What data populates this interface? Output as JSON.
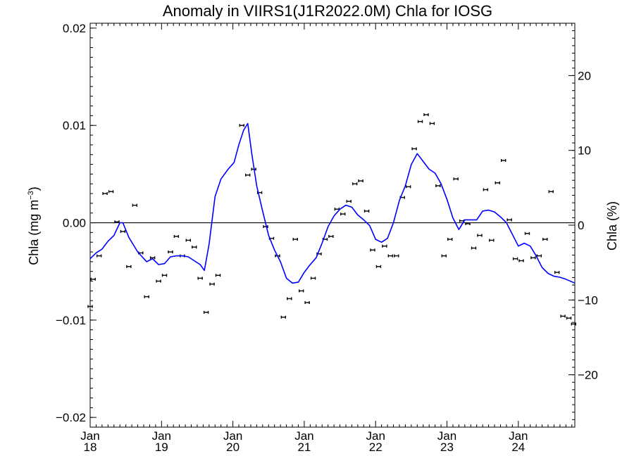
{
  "chart_data": {
    "type": "line",
    "title": "Anomaly in VIIRS1(J1R2022.0M) Chla for IOSG",
    "ylabel_left": "Chla (mg m",
    "ylabel_left_sup": "−3",
    "ylabel_left_close": ")",
    "ylabel_right": "Chla (%)",
    "ylim_left": [
      -0.021,
      0.0205
    ],
    "ylim_right": [
      -27,
      27
    ],
    "grid": false,
    "left_ticks": [
      {
        "value": 0.02,
        "label": "0.02"
      },
      {
        "value": 0.01,
        "label": "0.01"
      },
      {
        "value": 0.0,
        "label": "0.00"
      },
      {
        "value": -0.01,
        "label": "−0.01"
      },
      {
        "value": -0.02,
        "label": "−0.02"
      }
    ],
    "right_ticks": [
      {
        "value": 20,
        "label": "20"
      },
      {
        "value": 10,
        "label": "10"
      },
      {
        "value": 0,
        "label": "0"
      },
      {
        "value": -10,
        "label": "−10"
      },
      {
        "value": -20,
        "label": "−20"
      }
    ],
    "x_ticks": [
      {
        "month": 0,
        "line1": "Jan",
        "line2": "18"
      },
      {
        "month": 12,
        "line1": "Jan",
        "line2": "19"
      },
      {
        "month": 24,
        "line1": "Jan",
        "line2": "20"
      },
      {
        "month": 36,
        "line1": "Jan",
        "line2": "21"
      },
      {
        "month": 48,
        "line1": "Jan",
        "line2": "22"
      },
      {
        "month": 60,
        "line1": "Jan",
        "line2": "23"
      },
      {
        "month": 72,
        "line1": "Jan",
        "line2": "24"
      }
    ],
    "xlim": [
      0,
      81.5
    ],
    "zero_line": 0,
    "series": [
      {
        "type": "points",
        "color": "#000000",
        "values": [
          [
            0,
            -0.0086
          ],
          [
            0.5,
            -0.0058
          ],
          [
            1.5,
            -0.0034
          ],
          [
            2.5,
            0.003
          ],
          [
            3.5,
            0.0032
          ],
          [
            4.5,
            0.0001
          ],
          [
            5.5,
            -0.0009
          ],
          [
            6.5,
            -0.0045
          ],
          [
            7.5,
            0.0018
          ],
          [
            8.5,
            -0.0031
          ],
          [
            9.5,
            -0.0076
          ],
          [
            10.5,
            -0.0036
          ],
          [
            11.5,
            -0.006
          ],
          [
            12.5,
            -0.0054
          ],
          [
            13.5,
            -0.003
          ],
          [
            14.5,
            -0.0014
          ],
          [
            15.5,
            -0.0034
          ],
          [
            16.5,
            -0.0018
          ],
          [
            17.5,
            -0.0025
          ],
          [
            18.5,
            -0.0057
          ],
          [
            19.5,
            -0.0092
          ],
          [
            20.5,
            -0.0063
          ],
          [
            21.5,
            -0.0054
          ],
          [
            25.5,
            0.01
          ],
          [
            26.5,
            0.0049
          ],
          [
            27.5,
            0.0055
          ],
          [
            28.5,
            0.0031
          ],
          [
            29.5,
            -0.0004
          ],
          [
            30.5,
            -0.0016
          ],
          [
            31.5,
            -0.0034
          ],
          [
            32.5,
            -0.0097
          ],
          [
            33.5,
            -0.0078
          ],
          [
            34.5,
            -0.0017
          ],
          [
            35.5,
            -0.007
          ],
          [
            36.5,
            -0.0082
          ],
          [
            37.5,
            -0.0057
          ],
          [
            38.5,
            -0.0032
          ],
          [
            39.5,
            -0.0017
          ],
          [
            40.5,
            -0.0014
          ],
          [
            41.5,
            0.0014
          ],
          [
            42.5,
            0.0009
          ],
          [
            43.5,
            0.0022
          ],
          [
            44.5,
            0.004
          ],
          [
            45.5,
            0.0043
          ],
          [
            46.5,
            0.0012
          ],
          [
            47.5,
            -0.0028
          ],
          [
            48.5,
            -0.0045
          ],
          [
            49.5,
            -0.0024
          ],
          [
            50.5,
            -0.0034
          ],
          [
            51.5,
            -0.0034
          ],
          [
            52.5,
            0.0026
          ],
          [
            53.5,
            0.0037
          ],
          [
            54.5,
            0.0076
          ],
          [
            55.5,
            0.0104
          ],
          [
            56.5,
            0.0111
          ],
          [
            57.5,
            0.0102
          ],
          [
            58.5,
            0.0038
          ],
          [
            59.5,
            -0.0034
          ],
          [
            60.5,
            -0.0017
          ],
          [
            61.5,
            0.0045
          ],
          [
            62.5,
            0.0002
          ],
          [
            63.5,
            -0.0001
          ],
          [
            64.5,
            -0.0026
          ],
          [
            65.5,
            -0.0013
          ],
          [
            66.5,
            0.0034
          ],
          [
            67.5,
            -0.0018
          ],
          [
            68.5,
            0.0041
          ],
          [
            69.5,
            0.0064
          ],
          [
            70.5,
            0.0003
          ],
          [
            71.5,
            -0.0037
          ],
          [
            72.5,
            -0.0039
          ],
          [
            73.5,
            -0.0011
          ],
          [
            74.5,
            -0.0036
          ],
          [
            75.5,
            -0.0034
          ],
          [
            76.5,
            -0.0017
          ],
          [
            77.5,
            0.0032
          ],
          [
            78.5,
            -0.0051
          ],
          [
            79.5,
            -0.0096
          ],
          [
            80.5,
            -0.0098
          ],
          [
            81.3,
            -0.0104
          ]
        ]
      },
      {
        "type": "line",
        "color": "#0000ff",
        "values": [
          [
            0,
            -0.0037
          ],
          [
            1,
            -0.0031
          ],
          [
            2,
            -0.0027
          ],
          [
            3,
            -0.0019
          ],
          [
            4,
            -0.0013
          ],
          [
            5,
            0.0
          ],
          [
            5.5,
            0.0
          ],
          [
            6.5,
            -0.0015
          ],
          [
            8,
            -0.003
          ],
          [
            9.5,
            -0.004
          ],
          [
            10.5,
            -0.0037
          ],
          [
            11.5,
            -0.0043
          ],
          [
            12.5,
            -0.0042
          ],
          [
            13.5,
            -0.0035
          ],
          [
            14.5,
            -0.0034
          ],
          [
            15.5,
            -0.0034
          ],
          [
            16.5,
            -0.0035
          ],
          [
            17.5,
            -0.0039
          ],
          [
            18.5,
            -0.0043
          ],
          [
            19.2,
            -0.0049
          ],
          [
            20,
            -0.0022
          ],
          [
            21,
            0.0027
          ],
          [
            22,
            0.0045
          ],
          [
            23.2,
            0.0055
          ],
          [
            24.2,
            0.0062
          ],
          [
            25,
            0.008
          ],
          [
            25.8,
            0.0095
          ],
          [
            26.5,
            0.0102
          ],
          [
            27.2,
            0.007
          ],
          [
            28,
            0.0038
          ],
          [
            29,
            0.0012
          ],
          [
            30,
            -0.0013
          ],
          [
            31,
            -0.0028
          ],
          [
            32,
            -0.004
          ],
          [
            33,
            -0.0057
          ],
          [
            34,
            -0.0062
          ],
          [
            35,
            -0.0061
          ],
          [
            36,
            -0.0051
          ],
          [
            37,
            -0.0043
          ],
          [
            38,
            -0.0036
          ],
          [
            39,
            -0.0021
          ],
          [
            40,
            -0.0004
          ],
          [
            41,
            0.0007
          ],
          [
            42,
            0.0014
          ],
          [
            43,
            0.0018
          ],
          [
            44,
            0.0016
          ],
          [
            45,
            0.0008
          ],
          [
            46,
            0.0003
          ],
          [
            47,
            -0.0003
          ],
          [
            48,
            -0.0017
          ],
          [
            49,
            -0.002
          ],
          [
            50,
            -0.0016
          ],
          [
            51,
            0.0
          ],
          [
            52,
            0.0023
          ],
          [
            53,
            0.0038
          ],
          [
            54,
            0.006
          ],
          [
            55,
            0.0071
          ],
          [
            56,
            0.0063
          ],
          [
            57,
            0.0055
          ],
          [
            58,
            0.0051
          ],
          [
            59,
            0.004
          ],
          [
            60,
            0.0024
          ],
          [
            61,
            0.0005
          ],
          [
            62,
            -0.0007
          ],
          [
            63,
            0.0003
          ],
          [
            64,
            0.0003
          ],
          [
            65,
            0.0003
          ],
          [
            66,
            0.0012
          ],
          [
            67,
            0.0013
          ],
          [
            68,
            0.0011
          ],
          [
            69,
            0.0006
          ],
          [
            70,
            0.0
          ],
          [
            71,
            -0.0012
          ],
          [
            72,
            -0.0024
          ],
          [
            73,
            -0.0021
          ],
          [
            74,
            -0.0024
          ],
          [
            75,
            -0.0034
          ],
          [
            76,
            -0.0046
          ],
          [
            77,
            -0.0052
          ],
          [
            78,
            -0.0055
          ],
          [
            79,
            -0.0056
          ],
          [
            80,
            -0.0058
          ],
          [
            81.5,
            -0.0062
          ]
        ]
      }
    ]
  }
}
